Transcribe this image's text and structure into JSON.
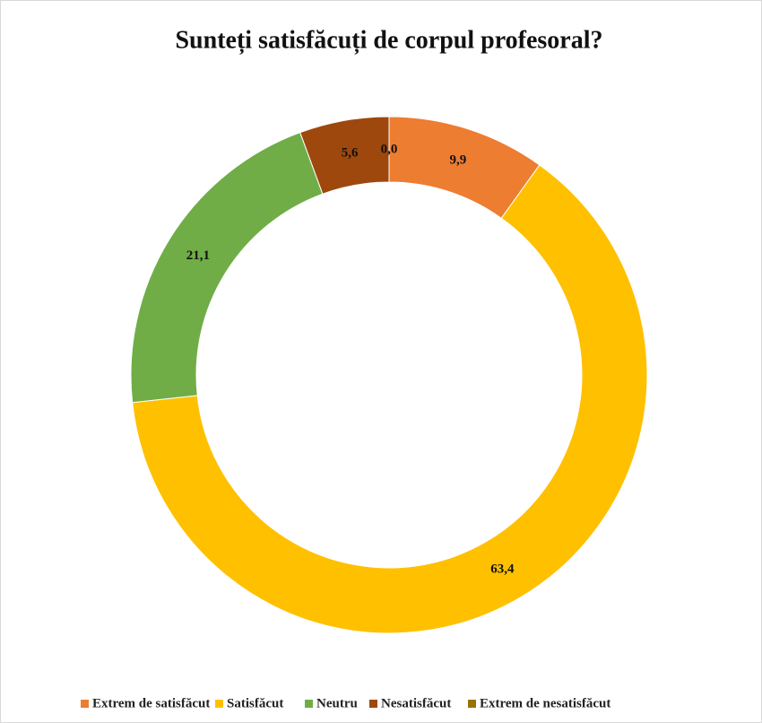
{
  "chart_data": {
    "type": "donut",
    "title": "Sunteți satisfăcuți de corpul profesoral?",
    "categories": [
      "Extrem de satisfăcut",
      "Satisfăcut",
      "Neutru",
      "Nesatisfăcut",
      "Extrem de nesatisfăcut"
    ],
    "values": [
      9.9,
      63.4,
      21.1,
      5.6,
      0.0
    ],
    "value_labels": [
      "9,9",
      "63,4",
      "21,1",
      "5,6",
      "0,0"
    ],
    "colors": [
      "#ed7d31",
      "#ffc000",
      "#70ad47",
      "#9e480e",
      "#997300"
    ],
    "legend": "bottom"
  }
}
